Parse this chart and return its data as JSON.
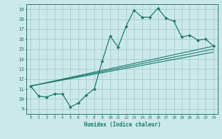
{
  "xlabel": "Humidex (Indice chaleur)",
  "bg_color": "#cce9ea",
  "grid_color": "#aacfd0",
  "line_color": "#1a7a6e",
  "xlim": [
    -0.5,
    23.5
  ],
  "ylim": [
    8.5,
    19.5
  ],
  "xticks": [
    0,
    1,
    2,
    3,
    4,
    5,
    6,
    7,
    8,
    9,
    10,
    11,
    12,
    13,
    14,
    15,
    16,
    17,
    18,
    19,
    20,
    21,
    22,
    23
  ],
  "yticks": [
    9,
    10,
    11,
    12,
    13,
    14,
    15,
    16,
    17,
    18,
    19
  ],
  "line1_x": [
    0,
    1,
    2,
    3,
    4,
    5,
    6,
    7,
    8,
    9,
    10,
    11,
    12,
    13,
    14,
    15,
    16,
    17,
    18,
    19,
    20,
    21,
    22,
    23
  ],
  "line1_y": [
    11.3,
    10.3,
    10.2,
    10.5,
    10.5,
    9.2,
    9.6,
    10.4,
    11.0,
    13.8,
    16.3,
    15.2,
    17.3,
    18.9,
    18.2,
    18.2,
    19.1,
    18.1,
    17.8,
    16.2,
    16.4,
    15.9,
    16.0,
    15.3
  ],
  "straight_lines": [
    {
      "x": [
        0,
        23
      ],
      "y": [
        11.3,
        15.3
      ]
    },
    {
      "x": [
        0,
        23
      ],
      "y": [
        11.3,
        15.0
      ]
    },
    {
      "x": [
        0,
        23
      ],
      "y": [
        11.3,
        14.7
      ]
    }
  ]
}
